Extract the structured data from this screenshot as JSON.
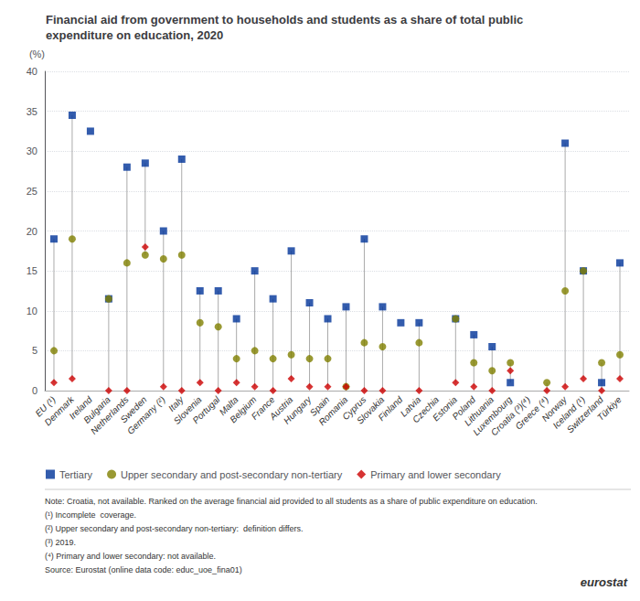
{
  "chart_data": {
    "type": "scatter",
    "title": "Financial aid from government to households and students as a share of total public\nexpenditure on education, 2020",
    "y_label": "(%)",
    "categories": [
      "EU (¹)",
      "Denmark",
      "Ireland",
      "Bulgaria",
      "Netherlands",
      "Sweden",
      "Germany (²)",
      "Italy",
      "Slovenia",
      "Portugal",
      "Malta",
      "Belgium",
      "France",
      "Austria",
      "Hungary",
      "Spain",
      "Romania",
      "Cyprus",
      "Slovakia",
      "Finland",
      "Latvia",
      "Czechia",
      "Estonia",
      "Poland",
      "Lithuania",
      "Luxembourg",
      "Croatia (³)(⁴)",
      "Greece (⁴)",
      "Norway",
      "Iceland (¹)",
      "Switzerland",
      "Türkiye"
    ],
    "series": [
      {
        "name": "Tertiary",
        "color": "#003399",
        "marker": "square",
        "values": [
          19.0,
          34.5,
          32.5,
          11.5,
          28.0,
          28.5,
          20.0,
          29.0,
          12.5,
          12.5,
          9.0,
          15.0,
          11.5,
          17.5,
          11.0,
          9.0,
          10.5,
          19.0,
          10.5,
          8.5,
          8.5,
          null,
          9.0,
          7.0,
          5.5,
          1.0,
          null,
          null,
          31.0,
          15.0,
          1.0,
          16.0
        ]
      },
      {
        "name": "Upper secondary and post-secondary non-tertiary",
        "color": "#808000",
        "marker": "circle",
        "values": [
          5.0,
          19.0,
          null,
          11.5,
          16.0,
          17.0,
          16.5,
          17.0,
          8.5,
          8.0,
          4.0,
          5.0,
          4.0,
          4.5,
          4.0,
          4.0,
          0.5,
          6.0,
          5.5,
          null,
          6.0,
          null,
          9.0,
          3.5,
          2.5,
          3.5,
          null,
          1.0,
          12.5,
          15.0,
          3.5,
          4.5
        ]
      },
      {
        "name": "Primary and lower secondary",
        "color": "#cc0000",
        "marker": "diamond",
        "values": [
          1.0,
          1.5,
          null,
          0.0,
          0.0,
          18.0,
          0.5,
          0.0,
          1.0,
          0.0,
          1.0,
          0.5,
          0.0,
          1.5,
          0.5,
          0.5,
          0.5,
          0.0,
          0.0,
          null,
          0.0,
          null,
          1.0,
          0.5,
          0.0,
          2.5,
          null,
          0.0,
          0.5,
          1.5,
          0.0,
          1.5
        ]
      }
    ],
    "ylim": [
      0,
      40
    ],
    "yticks": [
      0,
      5,
      10,
      15,
      20,
      25,
      30,
      35,
      40
    ],
    "grid": true,
    "legend": "lower left",
    "annotations": [
      "Note: Croatia, not available. Ranked on the average financial aid provided to all students as a share of public expenditure on education.",
      "(¹) Incomplete  coverage.",
      "(²) Upper secondary and post-secondary non-tertiary:  definition differs.",
      "(³) 2019.",
      "(⁴) Primary and lower secondary: not available.",
      "Source: Eurostat (online data code: educ_uoe_fina01)",
      "eurostat"
    ]
  }
}
